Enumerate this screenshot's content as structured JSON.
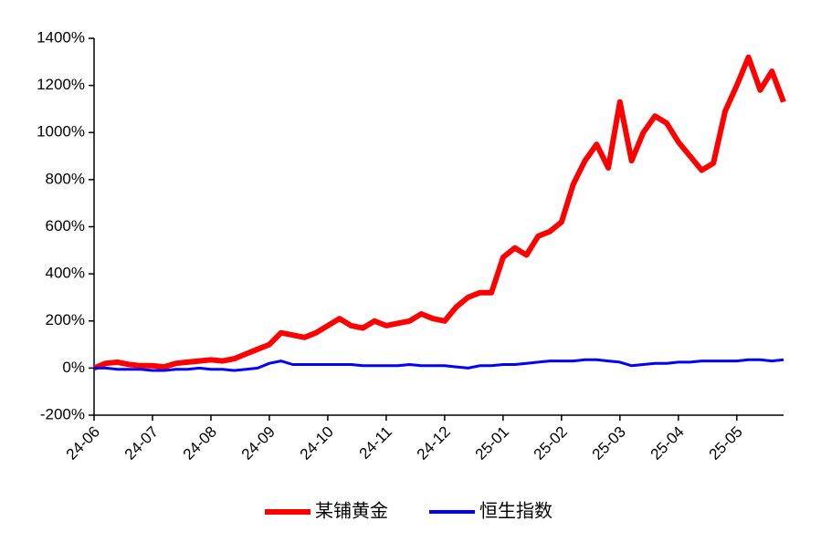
{
  "chart_data": {
    "type": "line",
    "categories": [
      "24-06",
      null,
      null,
      null,
      null,
      "24-07",
      null,
      null,
      null,
      null,
      "24-08",
      null,
      null,
      null,
      null,
      "24-09",
      null,
      null,
      null,
      null,
      "24-10",
      null,
      null,
      null,
      null,
      "24-11",
      null,
      null,
      null,
      null,
      "24-12",
      null,
      null,
      null,
      null,
      "25-01",
      null,
      null,
      null,
      null,
      "25-02",
      null,
      null,
      null,
      null,
      "25-03",
      null,
      null,
      null,
      null,
      "25-04",
      null,
      null,
      null,
      null,
      "25-05",
      null,
      null,
      null,
      null
    ],
    "series": [
      {
        "name": "某铺黄金",
        "color": "#ff0000",
        "values": [
          0,
          20,
          25,
          15,
          10,
          10,
          5,
          20,
          25,
          30,
          35,
          30,
          40,
          60,
          80,
          100,
          150,
          140,
          130,
          150,
          180,
          210,
          180,
          170,
          200,
          180,
          190,
          200,
          230,
          210,
          200,
          260,
          300,
          320,
          320,
          470,
          510,
          480,
          560,
          580,
          620,
          780,
          880,
          950,
          850,
          1130,
          880,
          1000,
          1070,
          1040,
          960,
          900,
          840,
          870,
          1090,
          1200,
          1320,
          1180,
          1260,
          1130
        ]
      },
      {
        "name": "恒生指数",
        "color": "#0000ff",
        "values": [
          0,
          0,
          -5,
          -5,
          -5,
          -10,
          -10,
          -5,
          -5,
          0,
          -5,
          -5,
          -10,
          -5,
          0,
          20,
          30,
          15,
          15,
          15,
          15,
          15,
          15,
          10,
          10,
          10,
          10,
          15,
          10,
          10,
          10,
          5,
          0,
          10,
          10,
          15,
          15,
          20,
          25,
          30,
          30,
          30,
          35,
          35,
          30,
          25,
          10,
          15,
          20,
          20,
          25,
          25,
          30,
          30,
          30,
          30,
          35,
          35,
          30,
          35
        ]
      }
    ],
    "ylim": [
      -200,
      1400
    ],
    "yticks": [
      {
        "value": -200,
        "label": "-200%"
      },
      {
        "value": 0,
        "label": "0%"
      },
      {
        "value": 200,
        "label": "200%"
      },
      {
        "value": 400,
        "label": "400%"
      },
      {
        "value": 600,
        "label": "600%"
      },
      {
        "value": 800,
        "label": "800%"
      },
      {
        "value": 1000,
        "label": "1000%"
      },
      {
        "value": 1200,
        "label": "1200%"
      },
      {
        "value": 1400,
        "label": "1400%"
      }
    ],
    "grid": false,
    "legend": "bottom"
  }
}
